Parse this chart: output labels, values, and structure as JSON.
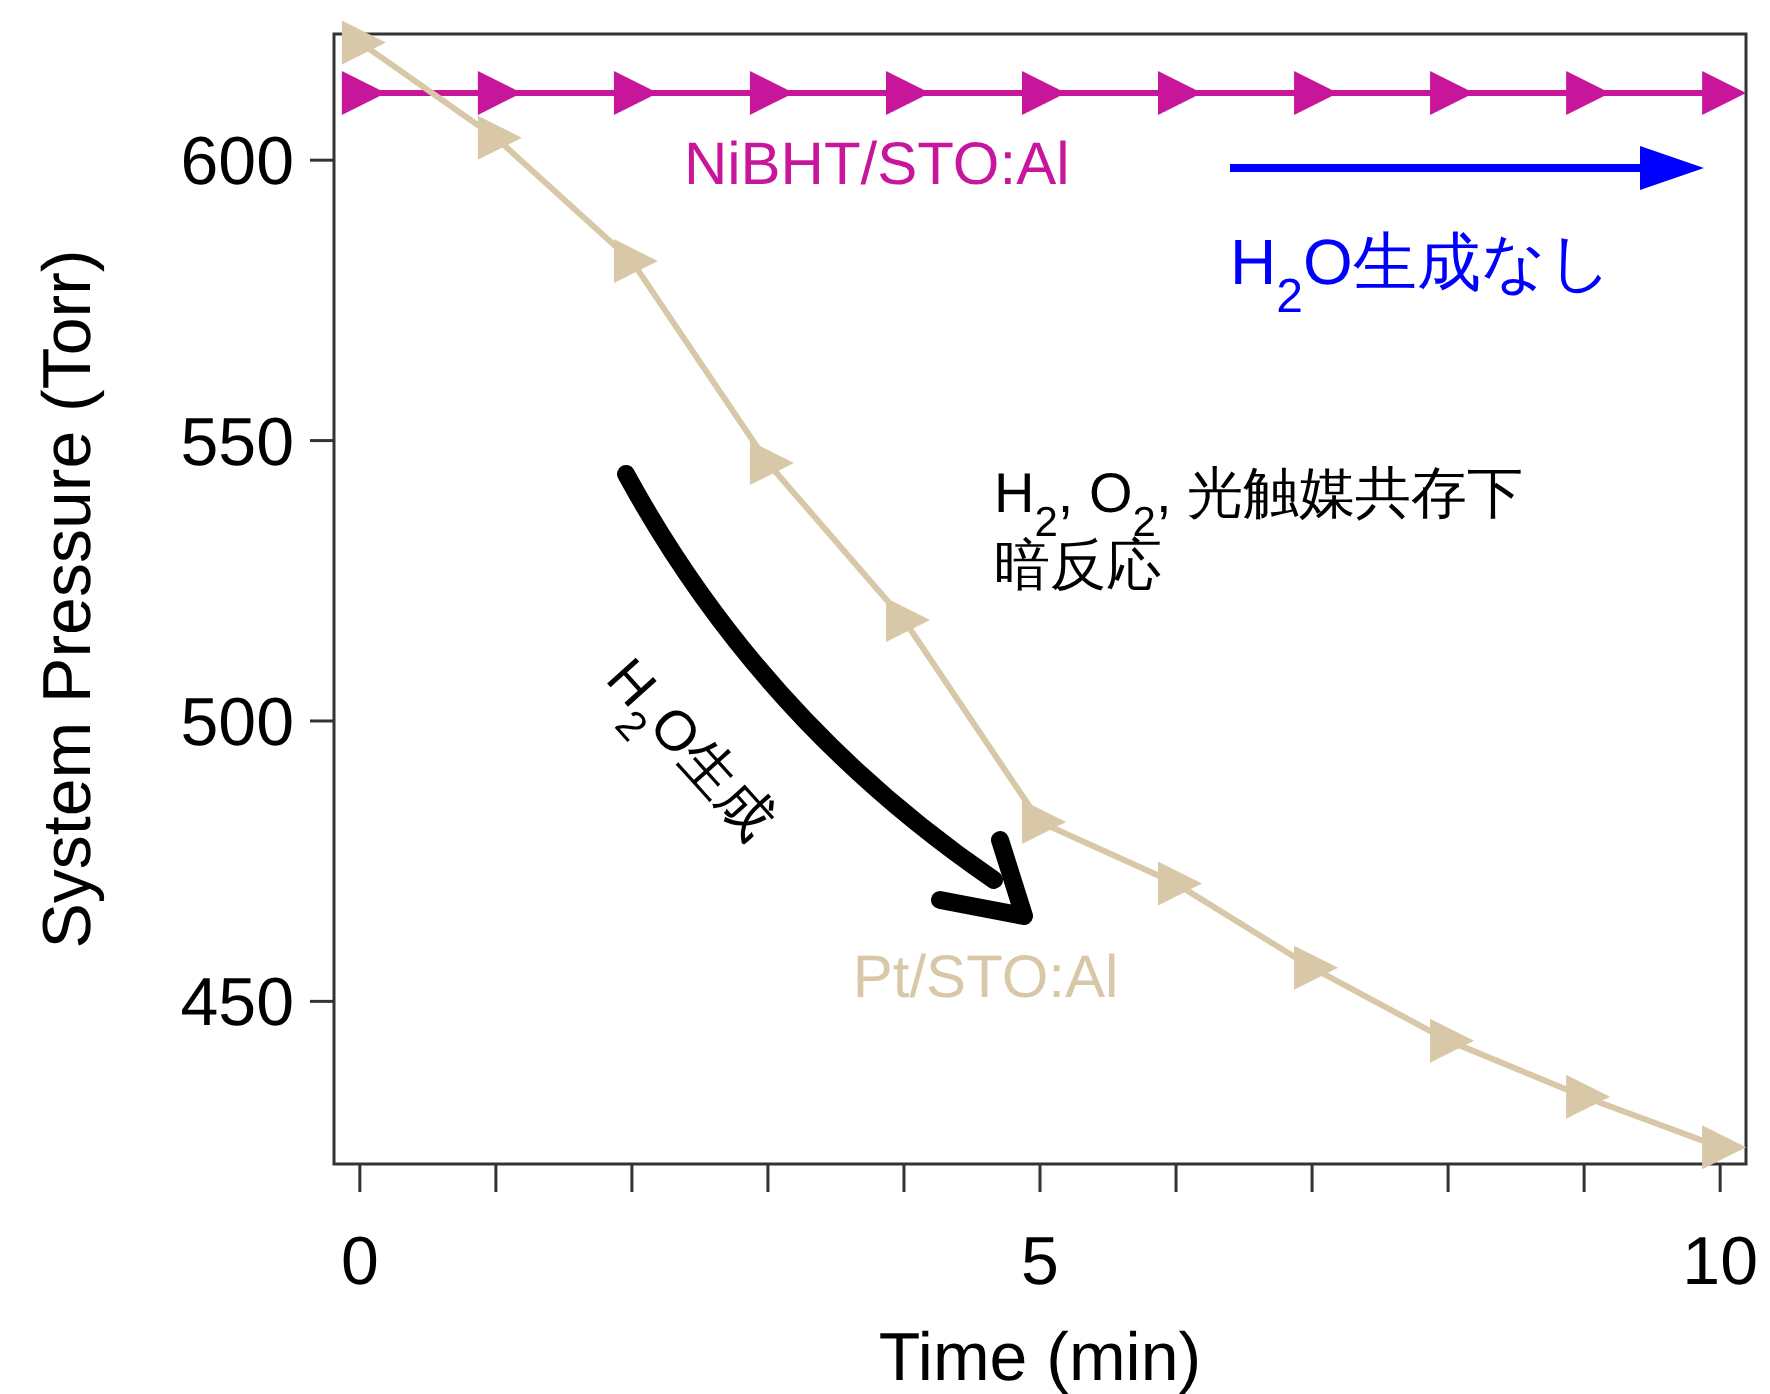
{
  "chart_data": {
    "type": "line",
    "xlabel": "Time (min)",
    "ylabel": "System Pressure (Torr)",
    "x": [
      0,
      1,
      2,
      3,
      4,
      5,
      6,
      7,
      8,
      9,
      10
    ],
    "series": [
      {
        "name": "NiBHT/STO:Al",
        "color": "#c8169c",
        "values": [
          612,
          612,
          612,
          612,
          612,
          612,
          612,
          612,
          612,
          612,
          612
        ]
      },
      {
        "name": "Pt/STO:Al",
        "color": "#d8c8a8",
        "values": [
          621,
          604,
          582,
          546,
          518,
          482,
          471,
          456,
          443,
          433,
          424
        ]
      }
    ],
    "xlim": [
      -0.19,
      10.19
    ],
    "ylim": [
      421,
      622.5
    ],
    "xticks": [
      0,
      {
        "value": 1,
        "label": null
      },
      {
        "value": 2,
        "label": null
      },
      {
        "value": 3,
        "label": null
      },
      {
        "value": 4,
        "label": null
      },
      5,
      {
        "value": 6,
        "label": null
      },
      {
        "value": 7,
        "label": null
      },
      {
        "value": 8,
        "label": null
      },
      {
        "value": 9,
        "label": null
      },
      10
    ],
    "yticks": [
      450,
      500,
      550,
      600
    ],
    "marker": "triangle",
    "line_style": "solid",
    "grid": false,
    "annotations": [
      "H$_{2}$O生成なし",
      "H$_{2}$, O$_{2}$, 光触媒共存下",
      "暗反応",
      "H$_{2}$O生成"
    ]
  }
}
